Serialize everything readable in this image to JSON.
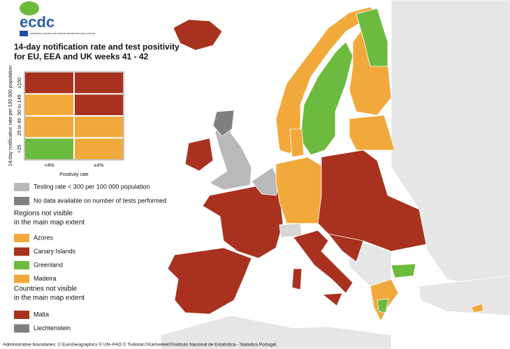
{
  "header": {
    "logo": "ecdc",
    "logo_subtitle": "EUROPEAN CENTRE FOR DISEASE PREVENTION AND CONTROL",
    "title_lines": [
      "14-day notification rate and test positivity",
      "for EU, EEA and UK weeks 41 - 42"
    ]
  },
  "matrix": {
    "y_label": "14-day notification rate per 100 000 population",
    "x_label": "Positivity rate",
    "columns": [
      "<4%",
      "≥4%"
    ],
    "rows": [
      {
        "label": "≥150",
        "colors": [
          "#a8321f",
          "#a8321f"
        ]
      },
      {
        "label": "50 to 149",
        "colors": [
          "#f2a93b",
          "#a8321f"
        ]
      },
      {
        "label": "25 to 49",
        "colors": [
          "#f2a93b",
          "#f2a93b"
        ]
      },
      {
        "label": "<25",
        "colors": [
          "#6dbb3e",
          "#f2a93b"
        ]
      }
    ]
  },
  "legend": {
    "items": [
      {
        "label": "Testing rate < 300 per 100 000 population",
        "color": "#b9b9b9"
      },
      {
        "label": "No data available on number of tests performed",
        "color": "#7f7f7f"
      }
    ],
    "regions": {
      "heading_lines": [
        "Regions not visible",
        "in the main map extent"
      ],
      "items": [
        {
          "label": "Azores",
          "color": "#f2a93b"
        },
        {
          "label": "Canary Islands",
          "color": "#a8321f"
        },
        {
          "label": "Greenland",
          "color": "#6dbb3e"
        },
        {
          "label": "Madeira",
          "color": "#f2a93b"
        }
      ]
    },
    "countries": {
      "heading_lines": [
        "Countries not visible",
        "in the main map extent"
      ],
      "items": [
        {
          "label": "Malta",
          "color": "#a8321f"
        },
        {
          "label": "Liechtenstein",
          "color": "#7f7f7f"
        }
      ]
    }
  },
  "footer": "Administrative boundaries: © EuroGeographics © UN–FAO © Turkstat.©Kartverket©Instituto Nacional de Estatística - Statistics Portugal."
}
